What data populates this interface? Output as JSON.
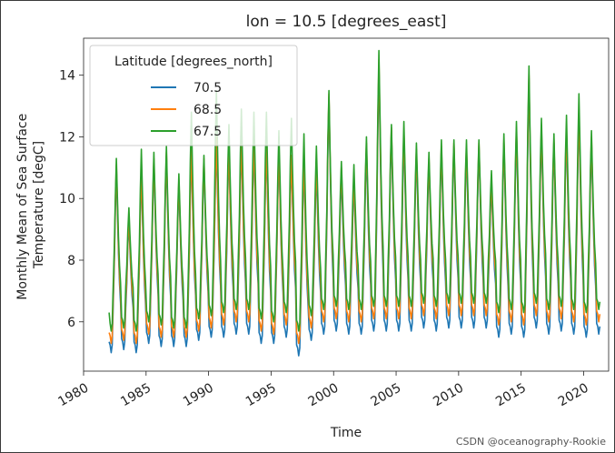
{
  "watermark": "CSDN @oceanography-Rookie",
  "chart_data": {
    "type": "line",
    "title": "lon = 10.5 [degrees_east]",
    "xlabel": "Time",
    "ylabel": "Monthly Mean of Sea Surface Temperature [degC]",
    "ylabel_lines": [
      "Monthly Mean of Sea Surface",
      "Temperature [degC]"
    ],
    "xlim": [
      1980,
      2022
    ],
    "ylim": [
      4.4,
      15.2
    ],
    "x_ticks": [
      1980,
      1985,
      1990,
      1995,
      2000,
      2005,
      2010,
      2015,
      2020
    ],
    "y_ticks": [
      6,
      8,
      10,
      12,
      14
    ],
    "legend": {
      "title": "Latitude [degrees_north]",
      "placement": "upper-left"
    },
    "start_year": 1982,
    "end_year": 2021,
    "series": [
      {
        "name": "70.5",
        "color": "#1f77b4",
        "annual_peak": [
          11.0,
          9.3,
          10.8,
          11.2,
          11.4,
          10.5,
          11.5,
          11.2,
          11.8,
          11.6,
          11.8,
          11.8,
          11.7,
          11.5,
          11.3,
          11.2,
          11.0,
          13.3,
          10.8,
          10.6,
          11.6,
          14.3,
          12.2,
          12.0,
          11.5,
          11.2,
          11.6,
          11.7,
          11.6,
          11.7,
          10.5,
          11.8,
          12.2,
          13.9,
          12.2,
          11.8,
          12.2,
          12.8,
          11.9,
          12.8
        ],
        "annual_min": [
          5.0,
          5.1,
          5.0,
          5.3,
          5.2,
          5.2,
          5.2,
          5.4,
          5.5,
          5.5,
          5.6,
          5.6,
          5.3,
          5.3,
          5.5,
          4.9,
          5.4,
          5.6,
          5.7,
          5.6,
          5.6,
          5.7,
          5.7,
          5.7,
          5.7,
          5.8,
          5.7,
          5.8,
          5.8,
          5.8,
          5.8,
          5.5,
          5.6,
          5.5,
          5.8,
          5.6,
          5.7,
          5.6,
          5.5,
          5.6
        ]
      },
      {
        "name": "68.5",
        "color": "#ff7f0e",
        "annual_peak": [
          11.1,
          9.4,
          10.9,
          11.3,
          11.5,
          10.6,
          11.6,
          11.3,
          12.0,
          11.7,
          11.9,
          11.9,
          11.8,
          11.6,
          11.4,
          11.3,
          11.2,
          13.4,
          11.0,
          10.7,
          11.8,
          14.5,
          12.3,
          12.2,
          11.6,
          11.3,
          11.7,
          11.8,
          11.7,
          11.8,
          10.6,
          11.9,
          12.3,
          14.0,
          12.3,
          11.9,
          12.3,
          12.9,
          12.0,
          13.0
        ],
        "annual_min": [
          5.3,
          5.4,
          5.3,
          5.6,
          5.5,
          5.5,
          5.5,
          5.7,
          5.8,
          5.9,
          6.0,
          6.0,
          5.7,
          5.6,
          5.9,
          5.3,
          5.8,
          6.0,
          6.1,
          6.0,
          6.0,
          6.1,
          6.1,
          6.1,
          6.1,
          6.2,
          6.1,
          6.2,
          6.2,
          6.2,
          6.2,
          5.9,
          6.0,
          5.9,
          6.2,
          6.0,
          6.1,
          6.0,
          5.9,
          6.0
        ]
      },
      {
        "name": "67.5",
        "color": "#2ca02c",
        "annual_peak": [
          11.3,
          9.7,
          11.6,
          11.5,
          11.7,
          10.8,
          12.8,
          11.4,
          13.5,
          12.4,
          12.9,
          12.8,
          12.8,
          12.2,
          12.6,
          12.1,
          11.7,
          13.5,
          11.2,
          11.1,
          12.0,
          14.8,
          12.4,
          12.5,
          11.8,
          11.5,
          11.9,
          11.9,
          11.9,
          11.9,
          10.9,
          12.1,
          12.5,
          14.3,
          12.6,
          12.1,
          12.7,
          13.4,
          12.2,
          13.2
        ],
        "annual_min": [
          5.7,
          5.8,
          5.7,
          6.0,
          5.9,
          5.8,
          5.8,
          6.1,
          6.2,
          6.3,
          6.4,
          6.4,
          6.1,
          6.0,
          6.3,
          5.7,
          6.2,
          6.4,
          6.5,
          6.4,
          6.4,
          6.5,
          6.5,
          6.5,
          6.5,
          6.6,
          6.5,
          6.6,
          6.6,
          6.6,
          6.6,
          6.3,
          6.4,
          6.3,
          6.6,
          6.4,
          6.5,
          6.4,
          6.3,
          6.4
        ]
      }
    ]
  }
}
